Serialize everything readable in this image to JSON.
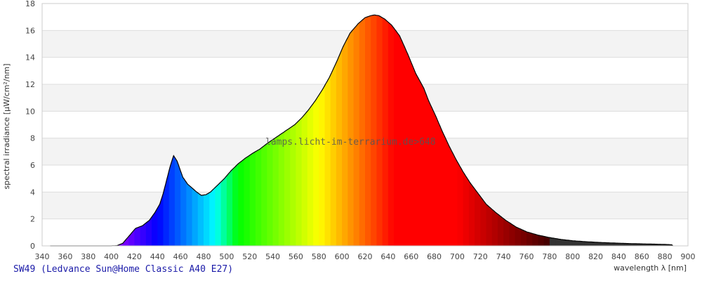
{
  "chart_data": {
    "type": "area",
    "title": "",
    "xlabel": "wavelength λ [nm]",
    "ylabel": "spectral irradiance [µW/cm²/nm]",
    "xlim": [
      340,
      900
    ],
    "ylim": [
      0,
      18
    ],
    "xticks": [
      340,
      360,
      380,
      400,
      420,
      440,
      460,
      480,
      500,
      520,
      540,
      560,
      580,
      600,
      620,
      640,
      660,
      680,
      700,
      720,
      740,
      760,
      780,
      800,
      820,
      840,
      860,
      880,
      900
    ],
    "yticks": [
      0,
      2,
      4,
      6,
      8,
      10,
      12,
      14,
      16,
      18
    ],
    "grid": "horizontal alternating bands",
    "fill": "spectral colors by wavelength, dark gray above 780 nm",
    "watermark": "lamps.licht-im-terrarium.de>648",
    "x": [
      347,
      360,
      380,
      400,
      405,
      410,
      413,
      417,
      421,
      427,
      433,
      438,
      442,
      445,
      448,
      451,
      454,
      457,
      462,
      466,
      470,
      474,
      478,
      482,
      486,
      492,
      498,
      504,
      510,
      516,
      523,
      529,
      535,
      541,
      547,
      553,
      559,
      565,
      571,
      577,
      583,
      589,
      595,
      601,
      607,
      614,
      620,
      625,
      628,
      632,
      637,
      643,
      650,
      657,
      664,
      671,
      675,
      681,
      687,
      693,
      699,
      705,
      711,
      718,
      725,
      733,
      742,
      751,
      760,
      770,
      780,
      790,
      800,
      810,
      820,
      830,
      840,
      850,
      860,
      870,
      880,
      887
    ],
    "y": [
      0,
      0,
      0,
      0,
      0.02,
      0.2,
      0.5,
      0.9,
      1.3,
      1.5,
      1.9,
      2.5,
      3.1,
      3.9,
      4.9,
      5.9,
      6.7,
      6.3,
      5.1,
      4.6,
      4.3,
      4.0,
      3.75,
      3.8,
      4.0,
      4.5,
      5.0,
      5.6,
      6.1,
      6.5,
      6.9,
      7.2,
      7.6,
      7.95,
      8.3,
      8.65,
      9.0,
      9.5,
      10.1,
      10.8,
      11.6,
      12.5,
      13.6,
      14.8,
      15.8,
      16.5,
      16.95,
      17.1,
      17.15,
      17.1,
      16.85,
      16.4,
      15.6,
      14.25,
      12.8,
      11.7,
      10.8,
      9.7,
      8.5,
      7.4,
      6.4,
      5.5,
      4.7,
      3.9,
      3.1,
      2.5,
      1.9,
      1.4,
      1.05,
      0.8,
      0.62,
      0.48,
      0.38,
      0.32,
      0.27,
      0.23,
      0.2,
      0.17,
      0.15,
      0.13,
      0.11,
      0.08
    ],
    "colors": {
      "line": "#000000",
      "band": "#f3f3f3",
      "grid": "#dddddd",
      "ir_fill": "#333333"
    }
  },
  "caption": "SW49 (Ledvance Sun@Home Classic A40 E27)"
}
